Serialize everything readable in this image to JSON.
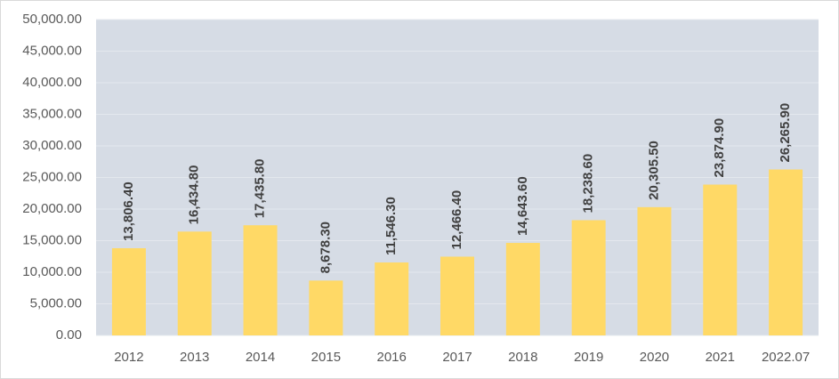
{
  "chart_data": {
    "type": "bar",
    "categories": [
      "2012",
      "2013",
      "2014",
      "2015",
      "2016",
      "2017",
      "2018",
      "2019",
      "2020",
      "2021",
      "2022.07"
    ],
    "values": [
      13806.4,
      16434.8,
      17435.8,
      8678.3,
      11546.3,
      12466.4,
      14643.6,
      18238.6,
      20305.5,
      23874.9,
      26265.9
    ],
    "value_labels": [
      "13,806.40",
      "16,434.80",
      "17,435.80",
      "8,678.30",
      "11,546.30",
      "12,466.40",
      "14,643.60",
      "18,238.60",
      "20,305.50",
      "23,874.90",
      "26,265.90"
    ],
    "color": "#ffd966",
    "ylim": [
      0,
      50000
    ],
    "yticks": [
      {
        "value": 0,
        "label": "0.00"
      },
      {
        "value": 5000,
        "label": "5,000.00"
      },
      {
        "value": 10000,
        "label": "10,000.00"
      },
      {
        "value": 15000,
        "label": "15,000.00"
      },
      {
        "value": 20000,
        "label": "20,000.00"
      },
      {
        "value": 25000,
        "label": "25,000.00"
      },
      {
        "value": 30000,
        "label": "30,000.00"
      },
      {
        "value": 35000,
        "label": "35,000.00"
      },
      {
        "value": 40000,
        "label": "40,000.00"
      },
      {
        "value": 45000,
        "label": "45,000.00"
      },
      {
        "value": 50000,
        "label": "50,000.00"
      }
    ],
    "grid": true
  }
}
